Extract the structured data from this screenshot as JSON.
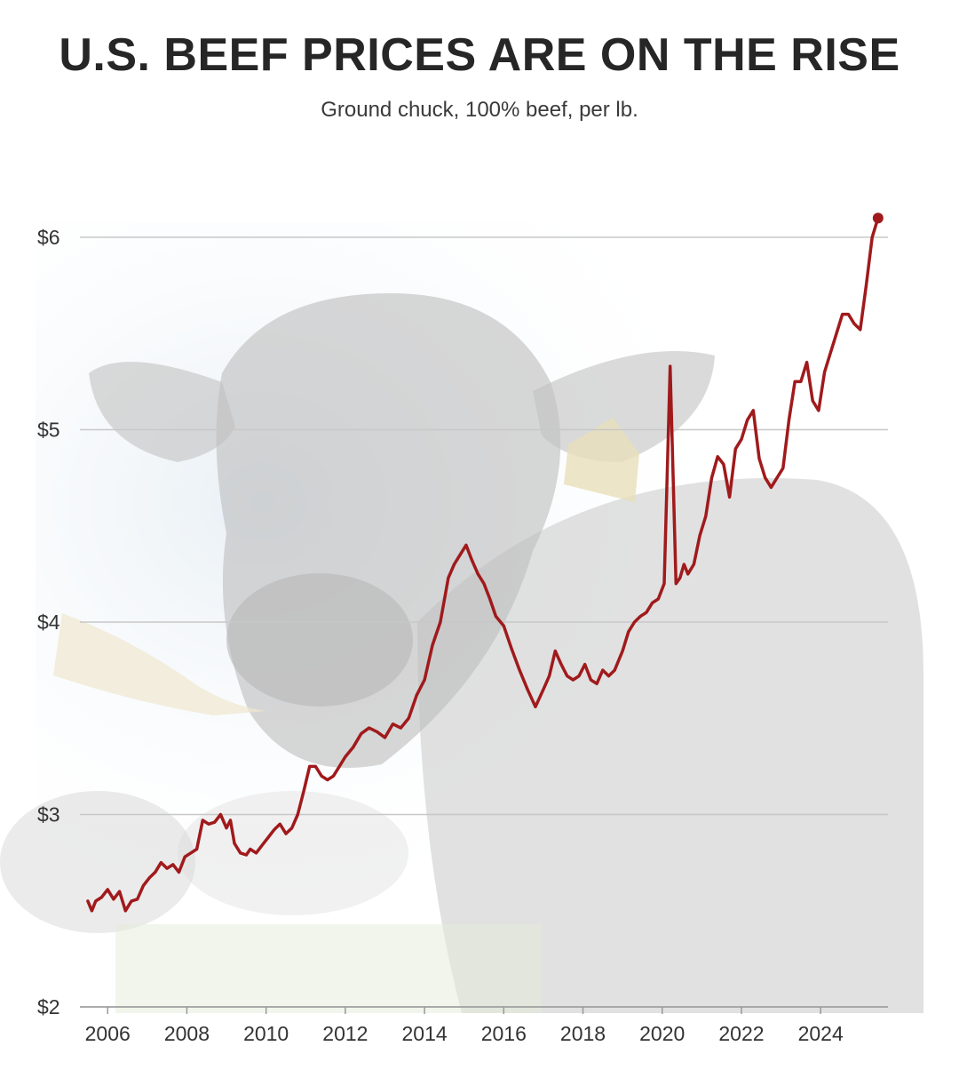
{
  "title": "U.S. BEEF PRICES ARE ON THE RISE",
  "subtitle": "Ground chuck, 100% beef, per lb.",
  "colors": {
    "line": "#a01a1c",
    "grid": "#c8c8c8",
    "text": "#262626"
  },
  "background_image": "black-angus-cow-photo",
  "chart_data": {
    "type": "line",
    "title": "U.S. BEEF PRICES ARE ON THE RISE",
    "subtitle": "Ground chuck, 100% beef, per lb.",
    "xlabel": "",
    "ylabel": "",
    "xlim": [
      2005.3,
      2025.7
    ],
    "ylim": [
      2,
      6
    ],
    "x_ticks": [
      2006,
      2008,
      2010,
      2012,
      2014,
      2016,
      2018,
      2020,
      2022,
      2024
    ],
    "y_ticks": [
      {
        "value": 2,
        "label": "$2"
      },
      {
        "value": 3,
        "label": "$3"
      },
      {
        "value": 4,
        "label": "$4"
      },
      {
        "value": 5,
        "label": "$5"
      },
      {
        "value": 6,
        "label": "$6"
      }
    ],
    "grid": true,
    "series": [
      {
        "x": [
          2005.5,
          2005.6,
          2005.7,
          2005.85,
          2006.0,
          2006.15,
          2006.3,
          2006.45,
          2006.6,
          2006.75,
          2006.9,
          2007.05,
          2007.2,
          2007.35,
          2007.5,
          2007.65,
          2007.8,
          2007.95,
          2008.1,
          2008.25,
          2008.4,
          2008.55,
          2008.7,
          2008.85,
          2009.0,
          2009.1,
          2009.2,
          2009.35,
          2009.5,
          2009.6,
          2009.75,
          2009.9,
          2010.05,
          2010.2,
          2010.35,
          2010.5,
          2010.65,
          2010.8,
          2010.95,
          2011.1,
          2011.25,
          2011.4,
          2011.55,
          2011.7,
          2011.85,
          2012.0,
          2012.2,
          2012.4,
          2012.6,
          2012.8,
          2013.0,
          2013.2,
          2013.4,
          2013.6,
          2013.8,
          2014.0,
          2014.2,
          2014.4,
          2014.6,
          2014.75,
          2014.9,
          2015.05,
          2015.2,
          2015.35,
          2015.5,
          2015.65,
          2015.8,
          2016.0,
          2016.2,
          2016.4,
          2016.6,
          2016.8,
          2017.0,
          2017.15,
          2017.3,
          2017.45,
          2017.6,
          2017.75,
          2017.9,
          2018.05,
          2018.2,
          2018.35,
          2018.5,
          2018.65,
          2018.8,
          2019.0,
          2019.15,
          2019.3,
          2019.45,
          2019.6,
          2019.75,
          2019.9,
          2020.05,
          2020.2,
          2020.35,
          2020.45,
          2020.55,
          2020.65,
          2020.8,
          2020.95,
          2021.1,
          2021.25,
          2021.4,
          2021.55,
          2021.7,
          2021.85,
          2022.0,
          2022.15,
          2022.3,
          2022.45,
          2022.6,
          2022.75,
          2022.9,
          2023.05,
          2023.2,
          2023.35,
          2023.5,
          2023.65,
          2023.8,
          2023.95,
          2024.1,
          2024.25,
          2024.4,
          2024.55,
          2024.7,
          2024.85,
          2025.0,
          2025.15,
          2025.3,
          2025.45
        ],
        "y": [
          2.55,
          2.5,
          2.55,
          2.57,
          2.61,
          2.56,
          2.6,
          2.5,
          2.55,
          2.56,
          2.63,
          2.67,
          2.7,
          2.75,
          2.72,
          2.74,
          2.7,
          2.78,
          2.8,
          2.82,
          2.97,
          2.95,
          2.96,
          3.0,
          2.93,
          2.97,
          2.85,
          2.8,
          2.79,
          2.82,
          2.8,
          2.84,
          2.88,
          2.92,
          2.95,
          2.9,
          2.93,
          3.0,
          3.12,
          3.25,
          3.25,
          3.2,
          3.18,
          3.2,
          3.25,
          3.3,
          3.35,
          3.42,
          3.45,
          3.43,
          3.4,
          3.47,
          3.45,
          3.5,
          3.62,
          3.7,
          3.88,
          4.0,
          4.23,
          4.3,
          4.35,
          4.4,
          4.32,
          4.25,
          4.2,
          4.12,
          4.03,
          3.98,
          3.86,
          3.75,
          3.65,
          3.56,
          3.65,
          3.72,
          3.85,
          3.78,
          3.72,
          3.7,
          3.72,
          3.78,
          3.7,
          3.68,
          3.75,
          3.72,
          3.75,
          3.85,
          3.95,
          4.0,
          4.03,
          4.05,
          4.1,
          4.12,
          4.2,
          5.33,
          4.2,
          4.23,
          4.3,
          4.25,
          4.3,
          4.45,
          4.55,
          4.75,
          4.86,
          4.82,
          4.65,
          4.9,
          4.95,
          5.05,
          5.1,
          4.85,
          4.75,
          4.7,
          4.75,
          4.8,
          5.05,
          5.25,
          5.25,
          5.35,
          5.15,
          5.1,
          5.3,
          5.4,
          5.5,
          5.6,
          5.6,
          5.55,
          5.52,
          5.75,
          6.0,
          6.1
        ]
      }
    ]
  }
}
